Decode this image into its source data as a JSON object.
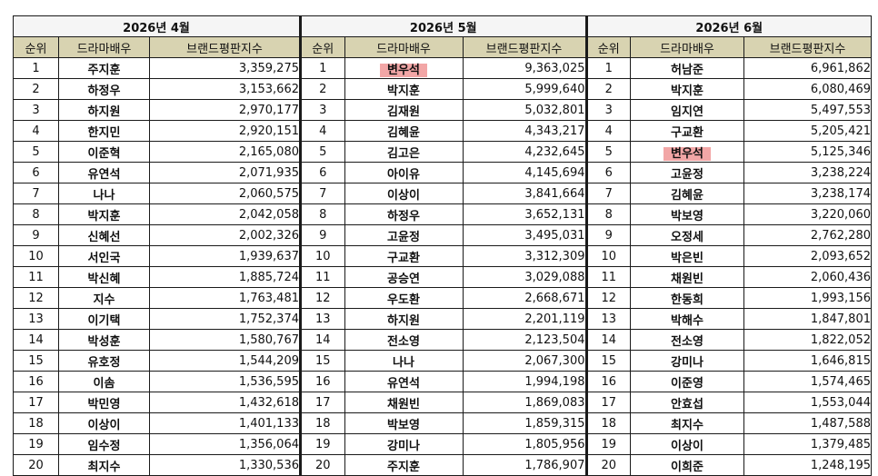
{
  "headers": {
    "rank": "순위",
    "actor": "드라마배우",
    "index": "브랜드평판지수"
  },
  "highlight_color": "#f2a6a6",
  "header_bg": "#d8d3b1",
  "months": [
    {
      "title": "2026년 4월",
      "rows": [
        {
          "rank": "1",
          "name": "주지훈",
          "value": "3,359,275"
        },
        {
          "rank": "2",
          "name": "하정우",
          "value": "3,153,662"
        },
        {
          "rank": "3",
          "name": "하지원",
          "value": "2,970,177"
        },
        {
          "rank": "4",
          "name": "한지민",
          "value": "2,920,151"
        },
        {
          "rank": "5",
          "name": "이준혁",
          "value": "2,165,080"
        },
        {
          "rank": "6",
          "name": "유연석",
          "value": "2,071,935"
        },
        {
          "rank": "7",
          "name": "나나",
          "value": "2,060,575"
        },
        {
          "rank": "8",
          "name": "박지훈",
          "value": "2,042,058"
        },
        {
          "rank": "9",
          "name": "신혜선",
          "value": "2,002,326"
        },
        {
          "rank": "10",
          "name": "서인국",
          "value": "1,939,637"
        },
        {
          "rank": "11",
          "name": "박신혜",
          "value": "1,885,724"
        },
        {
          "rank": "12",
          "name": "지수",
          "value": "1,763,481"
        },
        {
          "rank": "13",
          "name": "이기택",
          "value": "1,752,374"
        },
        {
          "rank": "14",
          "name": "박성훈",
          "value": "1,580,767"
        },
        {
          "rank": "15",
          "name": "유호정",
          "value": "1,544,209"
        },
        {
          "rank": "16",
          "name": "이솜",
          "value": "1,536,595"
        },
        {
          "rank": "17",
          "name": "박민영",
          "value": "1,432,618"
        },
        {
          "rank": "18",
          "name": "이상이",
          "value": "1,401,133"
        },
        {
          "rank": "19",
          "name": "임수정",
          "value": "1,356,064"
        },
        {
          "rank": "20",
          "name": "최지수",
          "value": "1,330,536"
        }
      ]
    },
    {
      "title": "2026년 5월",
      "rows": [
        {
          "rank": "1",
          "name": "변우석",
          "value": "9,363,025",
          "highlight": true
        },
        {
          "rank": "2",
          "name": "박지훈",
          "value": "5,999,640"
        },
        {
          "rank": "3",
          "name": "김재원",
          "value": "5,032,801"
        },
        {
          "rank": "4",
          "name": "김혜윤",
          "value": "4,343,217"
        },
        {
          "rank": "5",
          "name": "김고은",
          "value": "4,232,645"
        },
        {
          "rank": "6",
          "name": "아이유",
          "value": "4,145,694"
        },
        {
          "rank": "7",
          "name": "이상이",
          "value": "3,841,664"
        },
        {
          "rank": "8",
          "name": "하정우",
          "value": "3,652,131"
        },
        {
          "rank": "9",
          "name": "고윤정",
          "value": "3,495,031"
        },
        {
          "rank": "10",
          "name": "구교환",
          "value": "3,312,309"
        },
        {
          "rank": "11",
          "name": "공승연",
          "value": "3,029,088"
        },
        {
          "rank": "12",
          "name": "우도환",
          "value": "2,668,671"
        },
        {
          "rank": "13",
          "name": "하지원",
          "value": "2,201,119"
        },
        {
          "rank": "14",
          "name": "전소영",
          "value": "2,123,504"
        },
        {
          "rank": "15",
          "name": "나나",
          "value": "2,067,300"
        },
        {
          "rank": "16",
          "name": "유연석",
          "value": "1,994,198"
        },
        {
          "rank": "17",
          "name": "채원빈",
          "value": "1,869,083"
        },
        {
          "rank": "18",
          "name": "박보영",
          "value": "1,859,315"
        },
        {
          "rank": "19",
          "name": "강미나",
          "value": "1,805,956"
        },
        {
          "rank": "20",
          "name": "주지훈",
          "value": "1,786,907"
        }
      ]
    },
    {
      "title": "2026년 6월",
      "rows": [
        {
          "rank": "1",
          "name": "허남준",
          "value": "6,961,862"
        },
        {
          "rank": "2",
          "name": "박지훈",
          "value": "6,080,469"
        },
        {
          "rank": "3",
          "name": "임지연",
          "value": "5,497,553"
        },
        {
          "rank": "4",
          "name": "구교환",
          "value": "5,205,421"
        },
        {
          "rank": "5",
          "name": "변우석",
          "value": "5,125,346",
          "highlight": true
        },
        {
          "rank": "6",
          "name": "고윤정",
          "value": "3,238,224"
        },
        {
          "rank": "7",
          "name": "김혜윤",
          "value": "3,238,174"
        },
        {
          "rank": "8",
          "name": "박보영",
          "value": "3,220,060"
        },
        {
          "rank": "9",
          "name": "오정세",
          "value": "2,762,280"
        },
        {
          "rank": "10",
          "name": "박은빈",
          "value": "2,093,652"
        },
        {
          "rank": "11",
          "name": "채원빈",
          "value": "2,060,436"
        },
        {
          "rank": "12",
          "name": "한동희",
          "value": "1,993,156"
        },
        {
          "rank": "13",
          "name": "박해수",
          "value": "1,847,801"
        },
        {
          "rank": "14",
          "name": "전소영",
          "value": "1,822,052"
        },
        {
          "rank": "15",
          "name": "강미나",
          "value": "1,646,815"
        },
        {
          "rank": "16",
          "name": "이준영",
          "value": "1,574,465"
        },
        {
          "rank": "17",
          "name": "안효섭",
          "value": "1,553,044"
        },
        {
          "rank": "18",
          "name": "최지수",
          "value": "1,487,588"
        },
        {
          "rank": "19",
          "name": "이상이",
          "value": "1,379,485"
        },
        {
          "rank": "20",
          "name": "이희준",
          "value": "1,248,195"
        }
      ]
    }
  ]
}
